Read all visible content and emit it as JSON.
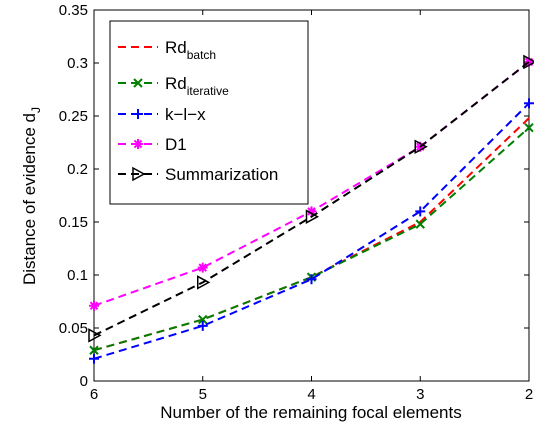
{
  "chart_data": {
    "type": "line",
    "xlabel": "Number of the remaining focal elements",
    "ylabel_main": "Distance of evidence d",
    "ylabel_sub": "J",
    "x": [
      6,
      5,
      4,
      3,
      2
    ],
    "x_ticks": [
      "6",
      "5",
      "4",
      "3",
      "2"
    ],
    "x_reversed": true,
    "xlim": [
      2,
      6
    ],
    "ylim": [
      0,
      0.35
    ],
    "y_ticks": [
      "0",
      "0.05",
      "0.1",
      "0.15",
      "0.2",
      "0.25",
      "0.3",
      "0.35"
    ],
    "grid": false,
    "legend_position": "top-left",
    "series": [
      {
        "name": "Rd",
        "name_sub": "batch",
        "color": "#ff0000",
        "marker": "none",
        "values": [
          0.029,
          0.058,
          0.098,
          0.15,
          0.248
        ]
      },
      {
        "name": "Rd",
        "name_sub": "iterative",
        "color": "#008000",
        "marker": "x",
        "values": [
          0.029,
          0.058,
          0.098,
          0.148,
          0.239
        ]
      },
      {
        "name": "k−l−x",
        "name_sub": "",
        "color": "#0000ff",
        "marker": "+",
        "values": [
          0.021,
          0.052,
          0.096,
          0.16,
          0.262
        ]
      },
      {
        "name": "D1",
        "name_sub": "",
        "color": "#ff00ff",
        "marker": "asterisk",
        "values": [
          0.071,
          0.107,
          0.16,
          0.221,
          0.301
        ]
      },
      {
        "name": "Summarization",
        "name_sub": "",
        "color": "#000000",
        "marker": "triangle-right",
        "values": [
          0.043,
          0.093,
          0.155,
          0.221,
          0.301
        ]
      }
    ]
  }
}
